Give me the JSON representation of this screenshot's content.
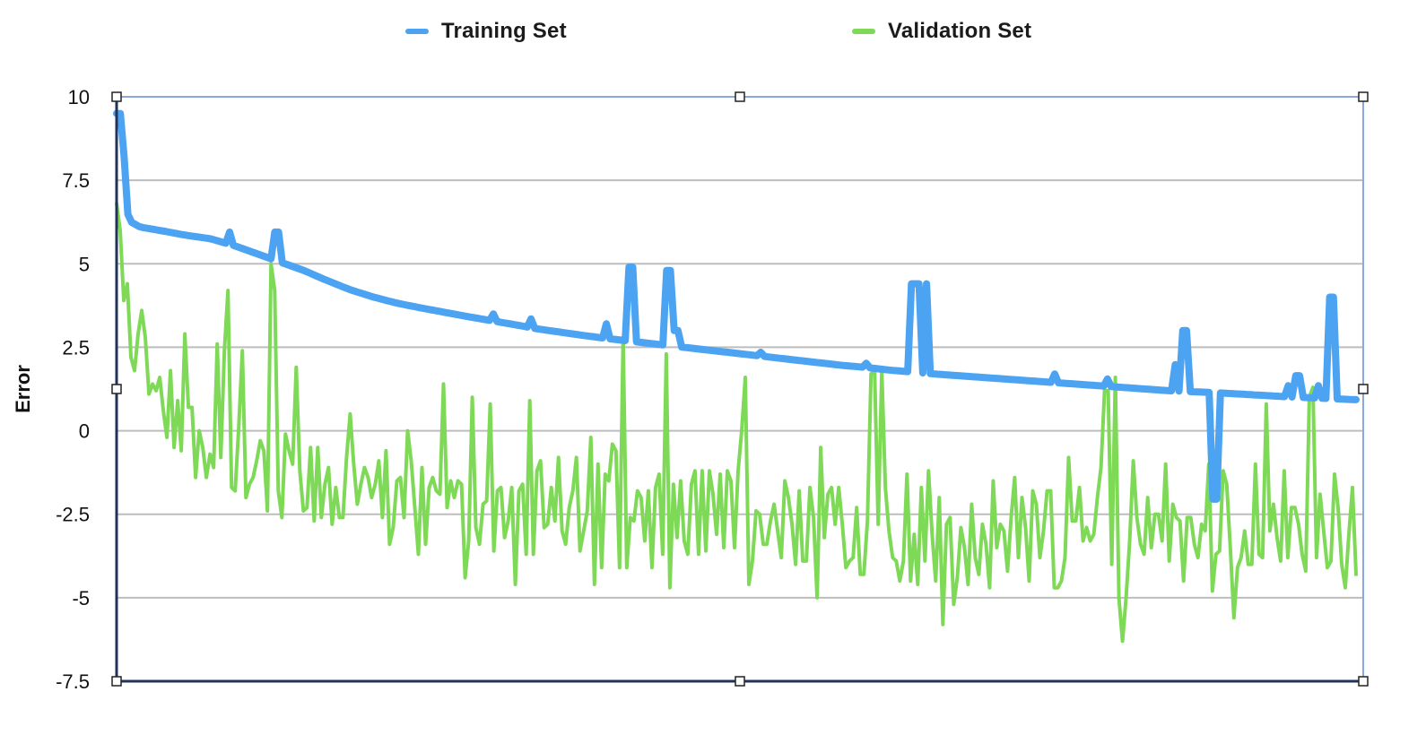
{
  "chart_data": {
    "type": "line",
    "ylabel": "Error",
    "xlabel": "",
    "ylim": [
      -7.5,
      10
    ],
    "yticks": [
      "10",
      "7.5",
      "5",
      "2.5",
      "0",
      "-2.5",
      "-5",
      "-7.5"
    ],
    "ytick_values": [
      10,
      7.5,
      5,
      2.5,
      0,
      -2.5,
      -5,
      -7.5
    ],
    "grid": true,
    "legend_position": "top",
    "n_points": 330,
    "series": [
      {
        "name": "Training Set",
        "color": "#4BA3F2",
        "anchors": [
          [
            0,
            9.5
          ],
          [
            2,
            9.5
          ],
          [
            5,
            6.3
          ],
          [
            10,
            6.1
          ],
          [
            20,
            5.98
          ],
          [
            30,
            5.85
          ],
          [
            40,
            5.75
          ],
          [
            50,
            5.55
          ],
          [
            60,
            5.3
          ],
          [
            70,
            5.05
          ],
          [
            80,
            4.8
          ],
          [
            90,
            4.5
          ],
          [
            100,
            4.22
          ],
          [
            110,
            4.0
          ],
          [
            120,
            3.82
          ],
          [
            130,
            3.68
          ],
          [
            140,
            3.55
          ],
          [
            150,
            3.42
          ],
          [
            160,
            3.3
          ],
          [
            170,
            3.18
          ],
          [
            180,
            3.05
          ],
          [
            190,
            2.95
          ],
          [
            200,
            2.85
          ],
          [
            210,
            2.76
          ],
          [
            220,
            2.68
          ],
          [
            230,
            2.6
          ],
          [
            240,
            2.52
          ],
          [
            250,
            2.44
          ],
          [
            260,
            2.36
          ],
          [
            270,
            2.28
          ],
          [
            280,
            2.2
          ],
          [
            290,
            2.12
          ],
          [
            300,
            2.04
          ],
          [
            310,
            1.96
          ],
          [
            320,
            1.9
          ],
          [
            330,
            1.82
          ],
          [
            340,
            1.76
          ],
          [
            350,
            1.7
          ],
          [
            360,
            1.65
          ],
          [
            370,
            1.6
          ],
          [
            380,
            1.55
          ],
          [
            390,
            1.5
          ],
          [
            400,
            1.45
          ],
          [
            410,
            1.4
          ],
          [
            420,
            1.35
          ],
          [
            430,
            1.3
          ],
          [
            440,
            1.25
          ],
          [
            450,
            1.2
          ],
          [
            460,
            1.17
          ],
          [
            470,
            1.14
          ],
          [
            480,
            1.1
          ],
          [
            490,
            1.06
          ],
          [
            500,
            1.02
          ],
          [
            510,
            0.99
          ],
          [
            520,
            0.96
          ],
          [
            530,
            0.93
          ]
        ],
        "spikes": [
          [
            30,
            5.95
          ],
          [
            42,
            5.95
          ],
          [
            43,
            5.95
          ],
          [
            100,
            3.5
          ],
          [
            110,
            3.35
          ],
          [
            130,
            3.2
          ],
          [
            136,
            4.9
          ],
          [
            137,
            4.9
          ],
          [
            146,
            4.8
          ],
          [
            147,
            4.8
          ],
          [
            148,
            3.0
          ],
          [
            149,
            3.0
          ],
          [
            172,
            2.35
          ],
          [
            200,
            2.02
          ],
          [
            212,
            4.4
          ],
          [
            213,
            4.4
          ],
          [
            214,
            4.4
          ],
          [
            216,
            4.4
          ],
          [
            250,
            1.7
          ],
          [
            264,
            1.55
          ],
          [
            282,
            1.98
          ],
          [
            284,
            3.0
          ],
          [
            285,
            3.0
          ],
          [
            292,
            -2.05
          ],
          [
            293,
            -2.05
          ],
          [
            312,
            1.35
          ],
          [
            314,
            1.65
          ],
          [
            315,
            1.65
          ],
          [
            320,
            1.35
          ],
          [
            323,
            4.0
          ],
          [
            324,
            4.0
          ]
        ]
      },
      {
        "name": "Validation Set",
        "color": "#7ED957",
        "values": [
          6.8,
          6.0,
          3.9,
          4.4,
          2.2,
          1.8,
          2.9,
          3.6,
          2.8,
          1.1,
          1.4,
          1.2,
          1.6,
          0.6,
          -0.2,
          1.8,
          -0.5,
          0.9,
          -0.6,
          2.9,
          0.7,
          0.7,
          -1.4,
          0.0,
          -0.5,
          -1.4,
          -0.7,
          -1.1,
          2.6,
          -0.8,
          2.4,
          4.2,
          -1.7,
          -1.8,
          0.1,
          2.4,
          -2.0,
          -1.6,
          -1.4,
          -0.9,
          -0.3,
          -0.6,
          -2.4,
          5.0,
          4.2,
          -1.8,
          -2.6,
          -0.1,
          -0.6,
          -1.0,
          1.9,
          -1.2,
          -2.4,
          -2.3,
          -0.5,
          -2.7,
          -0.5,
          -2.6,
          -1.6,
          -1.1,
          -2.8,
          -1.7,
          -2.6,
          -2.6,
          -0.8,
          0.5,
          -1.0,
          -2.2,
          -1.6,
          -1.1,
          -1.4,
          -2.0,
          -1.6,
          -0.9,
          -2.6,
          -0.6,
          -3.4,
          -2.9,
          -1.5,
          -1.4,
          -2.6,
          0.0,
          -0.9,
          -2.3,
          -3.7,
          -1.1,
          -3.4,
          -1.7,
          -1.4,
          -1.8,
          -1.9,
          1.4,
          -2.3,
          -1.5,
          -2.0,
          -1.5,
          -1.6,
          -4.4,
          -3.3,
          1.0,
          -2.9,
          -3.4,
          -2.2,
          -2.1,
          0.8,
          -3.6,
          -1.8,
          -1.7,
          -3.2,
          -2.7,
          -1.7,
          -4.6,
          -1.8,
          -1.6,
          -3.7,
          0.9,
          -3.7,
          -1.2,
          -0.9,
          -2.9,
          -2.8,
          -1.7,
          -2.7,
          -0.8,
          -3.0,
          -3.4,
          -2.3,
          -1.8,
          -0.8,
          -3.6,
          -3.0,
          -2.4,
          -0.2,
          -4.6,
          -1.0,
          -4.1,
          -1.3,
          -1.5,
          -0.4,
          -0.6,
          -4.1,
          2.8,
          -4.1,
          -2.6,
          -2.7,
          -1.8,
          -2.0,
          -3.3,
          -1.8,
          -4.1,
          -1.7,
          -1.3,
          -3.7,
          2.3,
          -4.7,
          -1.6,
          -3.2,
          -1.5,
          -3.3,
          -3.7,
          -1.6,
          -1.2,
          -3.7,
          -1.2,
          -3.6,
          -1.2,
          -1.9,
          -3.1,
          -1.3,
          -3.5,
          -1.2,
          -1.5,
          -3.5,
          -1.2,
          0.0,
          1.6,
          -4.6,
          -3.9,
          -2.4,
          -2.5,
          -3.4,
          -3.4,
          -2.7,
          -2.2,
          -3.0,
          -3.8,
          -1.5,
          -2.0,
          -2.8,
          -4.0,
          -1.8,
          -3.9,
          -3.9,
          -1.7,
          -2.6,
          -5.0,
          -0.5,
          -3.2,
          -1.9,
          -1.7,
          -2.8,
          -1.7,
          -2.8,
          -4.1,
          -3.9,
          -3.8,
          -2.3,
          -4.3,
          -4.3,
          -2.7,
          1.7,
          1.8,
          -2.8,
          1.8,
          -1.7,
          -3.0,
          -3.8,
          -3.9,
          -4.5,
          -3.9,
          -1.3,
          -4.5,
          -3.1,
          -4.6,
          -1.7,
          -3.9,
          -1.2,
          -3.1,
          -4.5,
          -2.0,
          -5.8,
          -2.8,
          -2.6,
          -5.2,
          -4.4,
          -2.9,
          -3.5,
          -4.6,
          -2.2,
          -3.8,
          -4.3,
          -2.8,
          -3.4,
          -4.7,
          -1.5,
          -3.5,
          -2.8,
          -3.0,
          -4.2,
          -2.6,
          -1.4,
          -3.8,
          -2.0,
          -2.9,
          -4.5,
          -1.8,
          -2.2,
          -3.8,
          -3.0,
          -1.8,
          -1.8,
          -4.7,
          -4.7,
          -4.5,
          -3.8,
          -0.8,
          -2.7,
          -2.7,
          -1.7,
          -3.3,
          -2.9,
          -3.3,
          -3.1,
          -2.0,
          -1.1,
          1.2,
          1.2,
          -4.0,
          1.6,
          -5.0,
          -6.3,
          -5.0,
          -3.3,
          -0.9,
          -2.6,
          -3.4,
          -3.7,
          -2.0,
          -3.5,
          -2.5,
          -2.5,
          -3.3,
          -1.0,
          -3.9,
          -2.2,
          -2.6,
          -2.7,
          -4.5,
          -2.6,
          -2.6,
          -3.4,
          -3.8,
          -2.8,
          -3.0,
          -1.0,
          -4.8,
          -3.7,
          -3.6,
          -1.2,
          -1.6,
          -3.5,
          -5.6,
          -4.1,
          -3.8,
          -3.0,
          -4.0,
          -4.0,
          -1.0,
          -3.7,
          -3.8,
          0.8,
          -3.0,
          -2.2,
          -3.2,
          -3.9,
          -1.2,
          -3.8,
          -2.3,
          -2.3,
          -2.8,
          -3.7,
          -4.2,
          1.0,
          1.3,
          -3.8,
          -1.9,
          -3.0,
          -4.1,
          -3.9,
          -1.3,
          -2.3,
          -4.0,
          -4.7,
          -3.1,
          -1.7,
          -4.3
        ]
      }
    ]
  }
}
